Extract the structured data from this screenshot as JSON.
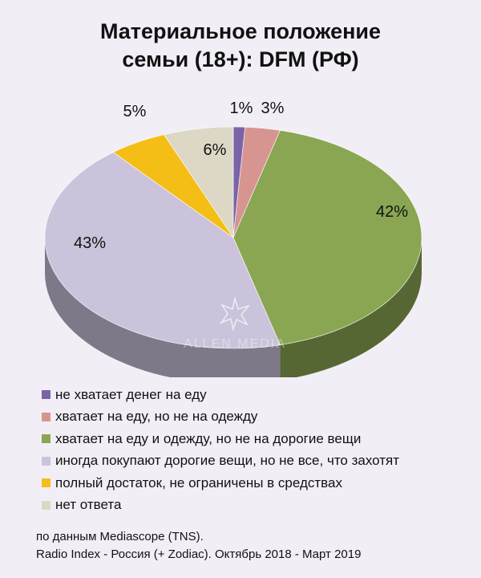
{
  "title": {
    "line1": "Материальное положение",
    "line2": "семьи (18+): DFM (РФ)"
  },
  "watermark": {
    "text": "ALLEN MEDIA"
  },
  "chart_data": {
    "type": "pie",
    "title": "Материальное положение семьи (18+): DFM (РФ)",
    "labels": [
      "не хватает денег на еду",
      "хватает на еду, но не на одежду",
      "хватает на еду и одежду, но не на дорогие вещи",
      "иногда покупают дорогие вещи, но не все, что захотят",
      "полный достаток, не ограничены в средствах",
      "нет ответа"
    ],
    "values": [
      1,
      3,
      42,
      43,
      5,
      6
    ],
    "value_labels": [
      "1%",
      "3%",
      "42%",
      "43%",
      "5%",
      "6%"
    ],
    "colors": [
      "#7b63a8",
      "#d79592",
      "#8aa653",
      "#cbc3db",
      "#f4be16",
      "#dcd8c5"
    ],
    "legend_position": "bottom"
  },
  "source": {
    "line1": "по данным Mediascope (TNS).",
    "line2": "Radio Index - Россия (+ Zodiac). Октябрь 2018 - Март 2019"
  }
}
